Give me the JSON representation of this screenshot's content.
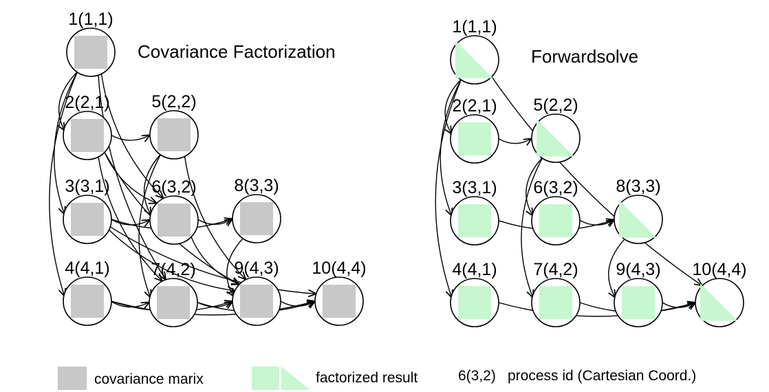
{
  "colors": {
    "covariance": "#c8c8c8",
    "factorized": "#c6f7cf"
  },
  "left": {
    "title": "Covariance Factorization",
    "nodes": [
      {
        "id": "1",
        "label": "1(1,1)",
        "fill": "square"
      },
      {
        "id": "2",
        "label": "2(2,1)",
        "fill": "square"
      },
      {
        "id": "5",
        "label": "5(2,2)",
        "fill": "square"
      },
      {
        "id": "3",
        "label": "3(3,1)",
        "fill": "square"
      },
      {
        "id": "6",
        "label": "6(3,2)",
        "fill": "square"
      },
      {
        "id": "8",
        "label": "8(3,3)",
        "fill": "square"
      },
      {
        "id": "4",
        "label": "4(4,1)",
        "fill": "square"
      },
      {
        "id": "7",
        "label": "7(4,2)",
        "fill": "square"
      },
      {
        "id": "9",
        "label": "9(4,3)",
        "fill": "square"
      },
      {
        "id": "10",
        "label": "10(4,4)",
        "fill": "square"
      }
    ],
    "edges": [
      [
        "1",
        "2"
      ],
      [
        "1",
        "3"
      ],
      [
        "1",
        "4"
      ],
      [
        "1",
        "6"
      ],
      [
        "1",
        "7"
      ],
      [
        "2",
        "5"
      ],
      [
        "2",
        "6"
      ],
      [
        "2",
        "7"
      ],
      [
        "2",
        "9"
      ],
      [
        "5",
        "6"
      ],
      [
        "5",
        "7"
      ],
      [
        "5",
        "9"
      ],
      [
        "3",
        "6"
      ],
      [
        "3",
        "8"
      ],
      [
        "3",
        "9"
      ],
      [
        "3",
        "10"
      ],
      [
        "6",
        "8"
      ],
      [
        "6",
        "9"
      ],
      [
        "8",
        "9"
      ],
      [
        "4",
        "7"
      ],
      [
        "4",
        "9"
      ],
      [
        "4",
        "10"
      ],
      [
        "7",
        "9"
      ],
      [
        "7",
        "10"
      ],
      [
        "9",
        "10"
      ]
    ]
  },
  "right": {
    "title": "Forwardsolve",
    "nodes": [
      {
        "id": "1",
        "label": "1(1,1)",
        "fill": "triangle"
      },
      {
        "id": "2",
        "label": "2(2,1)",
        "fill": "square"
      },
      {
        "id": "5",
        "label": "5(2,2)",
        "fill": "triangle"
      },
      {
        "id": "3",
        "label": "3(3,1)",
        "fill": "square"
      },
      {
        "id": "6",
        "label": "6(3,2)",
        "fill": "square"
      },
      {
        "id": "8",
        "label": "8(3,3)",
        "fill": "triangle"
      },
      {
        "id": "4",
        "label": "4(4,1)",
        "fill": "square"
      },
      {
        "id": "7",
        "label": "7(4,2)",
        "fill": "square"
      },
      {
        "id": "9",
        "label": "9(4,3)",
        "fill": "square"
      },
      {
        "id": "10",
        "label": "10(4,4)",
        "fill": "triangle"
      }
    ],
    "edges": [
      [
        "1",
        "2"
      ],
      [
        "1",
        "3"
      ],
      [
        "1",
        "4"
      ],
      [
        "1",
        "10"
      ],
      [
        "2",
        "5"
      ],
      [
        "5",
        "6"
      ],
      [
        "5",
        "7"
      ],
      [
        "3",
        "8"
      ],
      [
        "6",
        "8"
      ],
      [
        "8",
        "9"
      ],
      [
        "4",
        "10"
      ],
      [
        "7",
        "10"
      ],
      [
        "9",
        "10"
      ]
    ]
  },
  "legend": {
    "covariance_label": "covariance marix",
    "factorized_label": "factorized result",
    "process_example": "6(3,2)",
    "process_label": "process id (Cartesian Coord.)"
  }
}
